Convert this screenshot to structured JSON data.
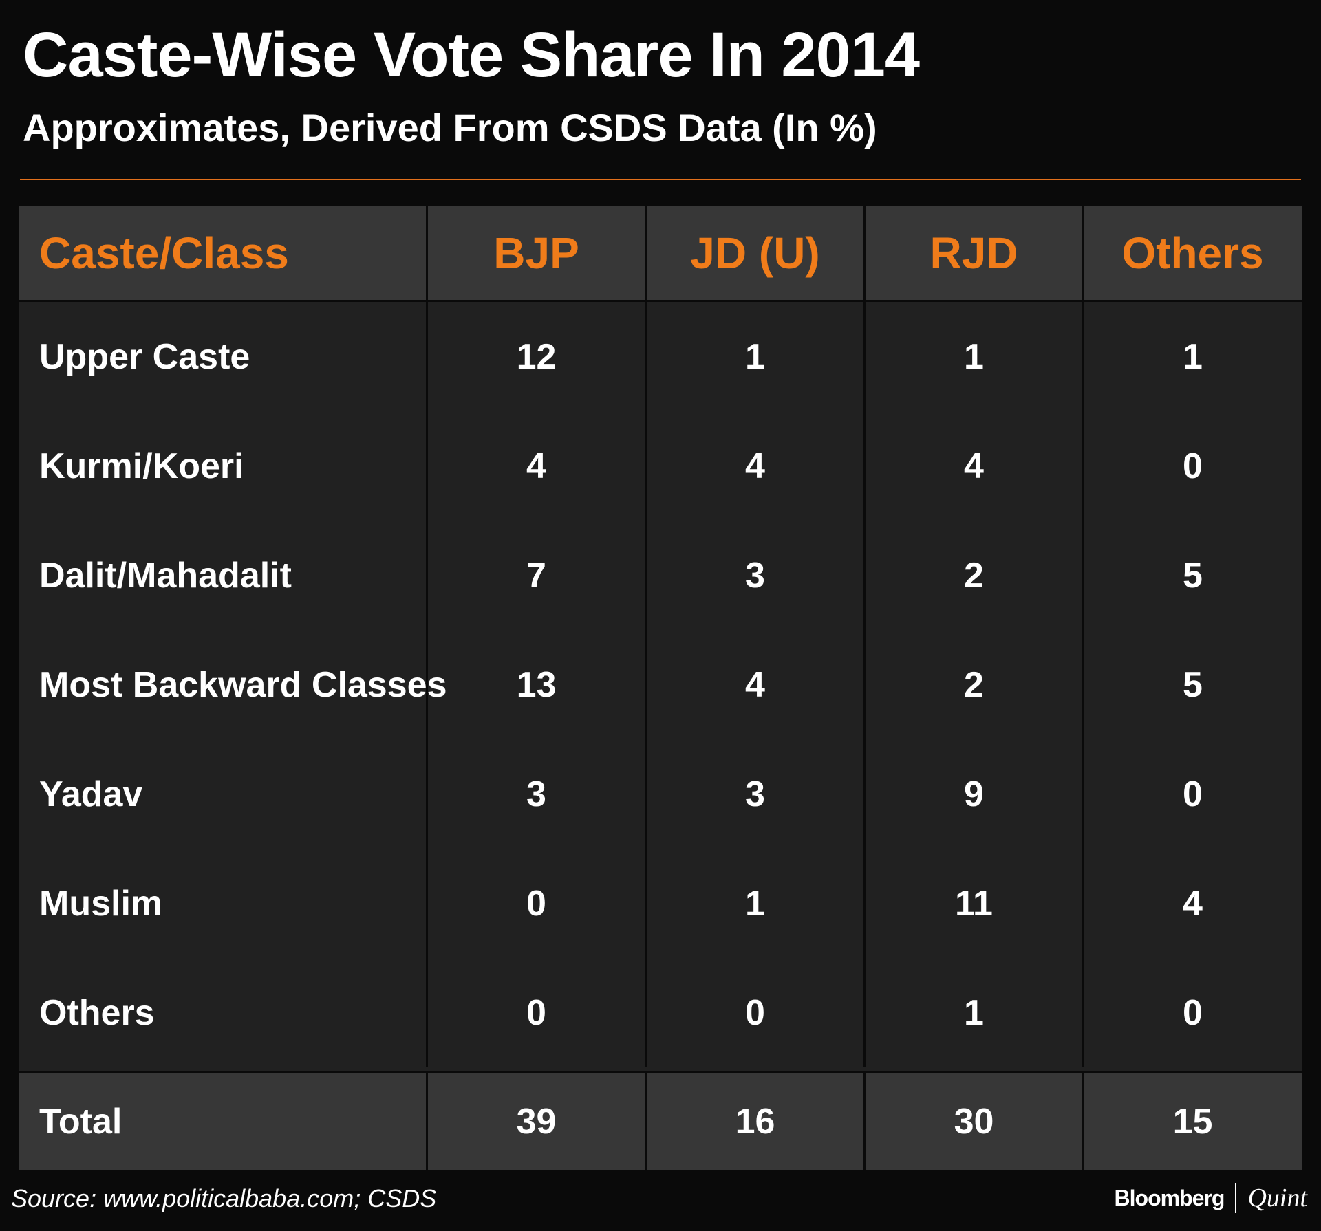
{
  "title": "Caste-Wise Vote Share In 2014",
  "subtitle": "Approximates, Derived From CSDS Data (In %)",
  "colors": {
    "background": "#0a0a0a",
    "accent": "#f07c1a",
    "header_bg": "#373737",
    "body_bg": "#212121"
  },
  "chart_data": {
    "type": "table",
    "title": "Caste-Wise Vote Share In 2014",
    "subtitle": "Approximates, Derived From CSDS Data (In %)",
    "columns": [
      "Caste/Class",
      "BJP",
      "JD (U)",
      "RJD",
      "Others"
    ],
    "rows": [
      {
        "label": "Upper Caste",
        "values": [
          "12",
          "1",
          "1",
          "1"
        ]
      },
      {
        "label": "Kurmi/Koeri",
        "values": [
          "4",
          "4",
          "4",
          "0"
        ]
      },
      {
        "label": "Dalit/Mahadalit",
        "values": [
          "7",
          "3",
          "2",
          "5"
        ]
      },
      {
        "label": "Most Backward Classes",
        "values": [
          "13",
          "4",
          "2",
          "5"
        ]
      },
      {
        "label": "Yadav",
        "values": [
          "3",
          "3",
          "9",
          "0"
        ]
      },
      {
        "label": "Muslim",
        "values": [
          "0",
          "1",
          "11",
          "4"
        ]
      },
      {
        "label": "Others",
        "values": [
          "0",
          "0",
          "1",
          "0"
        ]
      }
    ],
    "total": {
      "label": "Total",
      "values": [
        "39",
        "16",
        "30",
        "15"
      ]
    }
  },
  "source": "Source: www.politicalbaba.com; CSDS",
  "brand": {
    "main": "Bloomberg",
    "sub": "Quint"
  }
}
